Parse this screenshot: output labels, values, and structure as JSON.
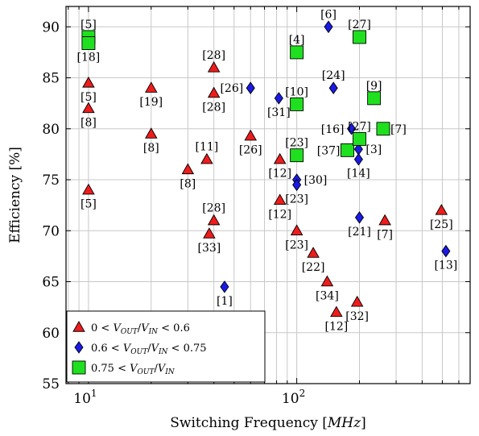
{
  "chart_data": {
    "type": "scatter",
    "title": "",
    "xlabel": "Switching Frequency [MHz]",
    "ylabel": "Efficiency [%]",
    "xscale": "log",
    "xlim": [
      7.8,
      680
    ],
    "ylim": [
      55,
      92
    ],
    "yticks": [
      55,
      60,
      65,
      70,
      75,
      80,
      85,
      90
    ],
    "xticks": [
      {
        "value": 10,
        "base": "10",
        "exp": "1"
      },
      {
        "value": 100,
        "base": "10",
        "exp": "2"
      }
    ],
    "grid": true,
    "legend": {
      "position": "bottom-left",
      "entries": [
        {
          "series": 0,
          "pre": "0 < ",
          "frac": "V",
          "sub1": "OUT",
          "mid": "/",
          "frac2": "V",
          "sub2": "IN",
          "post": " < 0.6"
        },
        {
          "series": 1,
          "pre": "0.6 < ",
          "frac": "V",
          "sub1": "OUT",
          "mid": "/",
          "frac2": "V",
          "sub2": "IN",
          "post": " < 0.75"
        },
        {
          "series": 2,
          "pre": "0.75 < ",
          "frac": "V",
          "sub1": "OUT",
          "mid": "/",
          "frac2": "V",
          "sub2": "IN",
          "post": ""
        }
      ]
    },
    "series": [
      {
        "marker": "triangle",
        "color": "#ee1c1c",
        "points": [
          {
            "x": 10,
            "y": 84.5,
            "label": "[5]",
            "pos": "below"
          },
          {
            "x": 10,
            "y": 82,
            "label": "[8]",
            "pos": "below"
          },
          {
            "x": 10,
            "y": 74,
            "label": "[5]",
            "pos": "below"
          },
          {
            "x": 20,
            "y": 84,
            "label": "[19]",
            "pos": "below"
          },
          {
            "x": 20,
            "y": 79.5,
            "label": "[8]",
            "pos": "below"
          },
          {
            "x": 30,
            "y": 76,
            "label": "[8]",
            "pos": "below"
          },
          {
            "x": 37,
            "y": 77,
            "label": "[11]",
            "pos": "above"
          },
          {
            "x": 40,
            "y": 86,
            "label": "[28]",
            "pos": "above"
          },
          {
            "x": 40,
            "y": 83.5,
            "label": "[28]",
            "pos": "below"
          },
          {
            "x": 40,
            "y": 71,
            "label": "[28]",
            "pos": "above"
          },
          {
            "x": 38,
            "y": 69.7,
            "label": "[33]",
            "pos": "below"
          },
          {
            "x": 60,
            "y": 79.3,
            "label": "[26]",
            "pos": "below"
          },
          {
            "x": 83,
            "y": 77,
            "label": "[12]",
            "pos": "below"
          },
          {
            "x": 83,
            "y": 73,
            "label": "[12]",
            "pos": "below"
          },
          {
            "x": 100,
            "y": 70,
            "label": "[23]",
            "pos": "below"
          },
          {
            "x": 120,
            "y": 67.8,
            "label": "[22]",
            "pos": "below"
          },
          {
            "x": 140,
            "y": 65,
            "label": "[34]",
            "pos": "below"
          },
          {
            "x": 155,
            "y": 62,
            "label": "[12]",
            "pos": "below"
          },
          {
            "x": 195,
            "y": 63,
            "label": "[32]",
            "pos": "below"
          },
          {
            "x": 265,
            "y": 71,
            "label": "[7]",
            "pos": "below"
          },
          {
            "x": 495,
            "y": 72,
            "label": "[25]",
            "pos": "below"
          }
        ]
      },
      {
        "marker": "diamond",
        "color": "#1a1ae6",
        "points": [
          {
            "x": 45,
            "y": 64.5,
            "label": "[1]",
            "pos": "below"
          },
          {
            "x": 60,
            "y": 84,
            "label": "[26]",
            "pos": "left"
          },
          {
            "x": 82,
            "y": 83,
            "label": "[31]",
            "pos": "below"
          },
          {
            "x": 100,
            "y": 75,
            "label": "[30]",
            "pos": "right"
          },
          {
            "x": 100,
            "y": 74.5,
            "label": "[23]",
            "pos": "below"
          },
          {
            "x": 142,
            "y": 90,
            "label": "[6]",
            "pos": "above"
          },
          {
            "x": 150,
            "y": 84,
            "label": "[24]",
            "pos": "above"
          },
          {
            "x": 183,
            "y": 80,
            "label": "[16]",
            "pos": "left"
          },
          {
            "x": 198,
            "y": 78,
            "label": "[3]",
            "pos": "right"
          },
          {
            "x": 198,
            "y": 77,
            "label": "[14]",
            "pos": "below"
          },
          {
            "x": 200,
            "y": 71.3,
            "label": "[21]",
            "pos": "below"
          },
          {
            "x": 520,
            "y": 68,
            "label": "[13]",
            "pos": "below"
          }
        ]
      },
      {
        "marker": "square",
        "color": "#1fe01f",
        "points": [
          {
            "x": 10,
            "y": 89,
            "label": "[5]",
            "pos": "above"
          },
          {
            "x": 10,
            "y": 88.4,
            "label": "[18]",
            "pos": "below"
          },
          {
            "x": 100,
            "y": 87.5,
            "label": "[4]",
            "pos": "above"
          },
          {
            "x": 100,
            "y": 82.4,
            "label": "[10]",
            "pos": "above"
          },
          {
            "x": 100,
            "y": 77.4,
            "label": "[23]",
            "pos": "above"
          },
          {
            "x": 175,
            "y": 77.9,
            "label": "[37]",
            "pos": "left"
          },
          {
            "x": 200,
            "y": 89,
            "label": "[27]",
            "pos": "above"
          },
          {
            "x": 200,
            "y": 79,
            "label": "[27]",
            "pos": "above"
          },
          {
            "x": 235,
            "y": 83,
            "label": "[9]",
            "pos": "above"
          },
          {
            "x": 260,
            "y": 80,
            "label": "[7]",
            "pos": "right"
          }
        ]
      }
    ]
  }
}
